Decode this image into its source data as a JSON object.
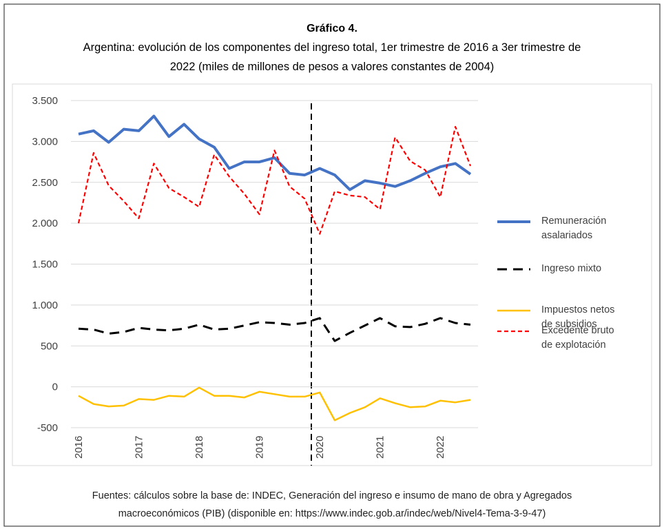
{
  "chart_data": {
    "type": "line",
    "title": "Gráfico 4.",
    "subtitle": [
      "Argentina: evolución de los componentes del ingreso total, 1er trimestre de 2016 a 3er trimestre de",
      "2022 (miles de millones de pesos a valores constantes de 2004)"
    ],
    "source": [
      "Fuentes: cálculos sobre la base de: INDEC, Generación del ingreso e insumo de mano de obra y Agregados",
      "macroeconómicos (PIB) (disponible en: https://www.indec.gob.ar/indec/web/Nivel4-Tema-3-9-47)"
    ],
    "categories": [
      "2016",
      null,
      null,
      null,
      "2017",
      null,
      null,
      null,
      "2018",
      null,
      null,
      null,
      "2019",
      null,
      null,
      null,
      "2020",
      null,
      null,
      null,
      "2021",
      null,
      null,
      null,
      "2022",
      null,
      null
    ],
    "series": [
      {
        "name": "Remuneración asalariados",
        "color": "#4472c4",
        "style": "solid",
        "values": [
          3090,
          3130,
          2990,
          3150,
          3130,
          3310,
          3060,
          3210,
          3030,
          2930,
          2670,
          2750,
          2750,
          2800,
          2610,
          2590,
          2670,
          2590,
          2410,
          2520,
          2490,
          2450,
          2520,
          2610,
          2690,
          2730,
          2600
        ]
      },
      {
        "name": "Ingreso mixto",
        "color": "#000000",
        "style": "dashed",
        "values": [
          710,
          700,
          650,
          670,
          720,
          700,
          690,
          710,
          760,
          700,
          710,
          750,
          790,
          780,
          760,
          780,
          840,
          560,
          660,
          750,
          840,
          740,
          730,
          770,
          840,
          780,
          760
        ]
      },
      {
        "name": "Impuestos netos de subsidios",
        "color": "#ffc000",
        "style": "solid",
        "values": [
          -110,
          -210,
          -240,
          -230,
          -150,
          -160,
          -110,
          -120,
          -10,
          -110,
          -110,
          -130,
          -60,
          -90,
          -120,
          -120,
          -70,
          -410,
          -320,
          -250,
          -140,
          -200,
          -250,
          -240,
          -170,
          -190,
          -160
        ]
      },
      {
        "name": "Excedente bruto de explotación",
        "color": "#ff0000",
        "style": "dotted",
        "values": [
          2000,
          2860,
          2460,
          2270,
          2060,
          2730,
          2430,
          2320,
          2200,
          2840,
          2570,
          2360,
          2110,
          2890,
          2450,
          2300,
          1870,
          2390,
          2340,
          2320,
          2170,
          3050,
          2760,
          2650,
          2320,
          3180,
          2700
        ]
      }
    ],
    "ylim": [
      -500,
      3500
    ],
    "yticks": [
      {
        "value": 3500,
        "label": "3.500"
      },
      {
        "value": 3000,
        "label": "3.000"
      },
      {
        "value": 2500,
        "label": "2.500"
      },
      {
        "value": 2000,
        "label": "2.000"
      },
      {
        "value": 1500,
        "label": "1.500"
      },
      {
        "value": 1000,
        "label": "1.000"
      },
      500,
      0,
      -500
    ],
    "grid": true,
    "legend": "right"
  }
}
